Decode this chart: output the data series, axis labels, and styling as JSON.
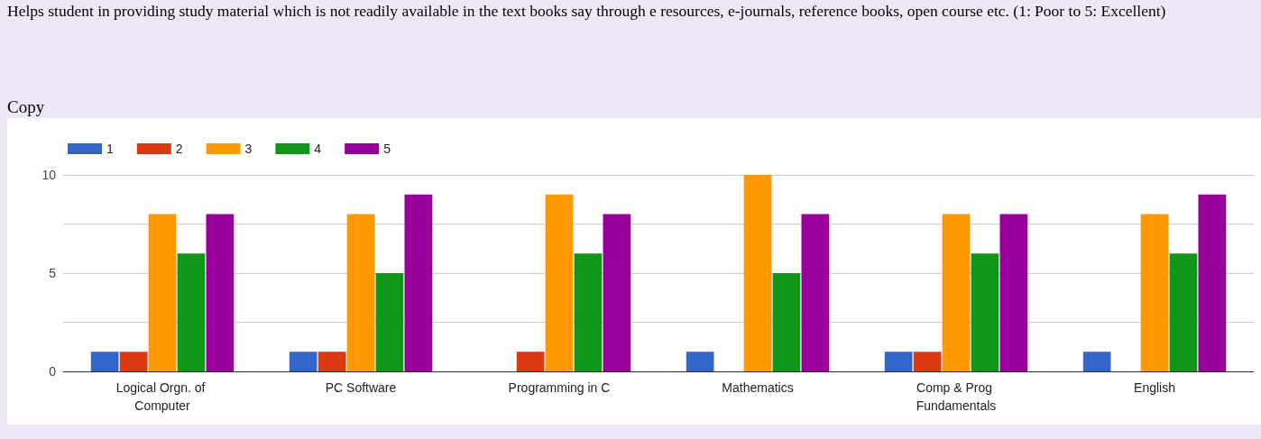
{
  "chart_data": {
    "type": "bar",
    "title": "Helps student in providing study material which is not readily available in the text books say through e resources, e-journals, reference books, open course etc.      (1: Poor to 5: Excellent)",
    "annotations": [
      "Copy"
    ],
    "categories": [
      "Logical Orgn. of Computer",
      "PC Software",
      "Programming in C",
      "Mathematics",
      "Comp & Prog Fundamentals",
      "English"
    ],
    "series": [
      {
        "name": "1",
        "color": "#3366cc",
        "values": [
          1,
          1,
          0,
          1,
          1,
          1
        ]
      },
      {
        "name": "2",
        "color": "#dc3912",
        "values": [
          1,
          1,
          1,
          0,
          1,
          0
        ]
      },
      {
        "name": "3",
        "color": "#ff9900",
        "values": [
          8,
          8,
          9,
          10,
          8,
          8
        ]
      },
      {
        "name": "4",
        "color": "#109618",
        "values": [
          6,
          5,
          6,
          5,
          6,
          6
        ]
      },
      {
        "name": "5",
        "color": "#990099",
        "values": [
          8,
          9,
          8,
          8,
          8,
          9
        ]
      }
    ],
    "ylim": [
      0,
      10
    ],
    "yticks": [
      0,
      {
        "value": 2.5,
        "label": null
      },
      5,
      {
        "value": 7.5,
        "label": null
      },
      10
    ],
    "grid": "y",
    "legend": "top left"
  }
}
